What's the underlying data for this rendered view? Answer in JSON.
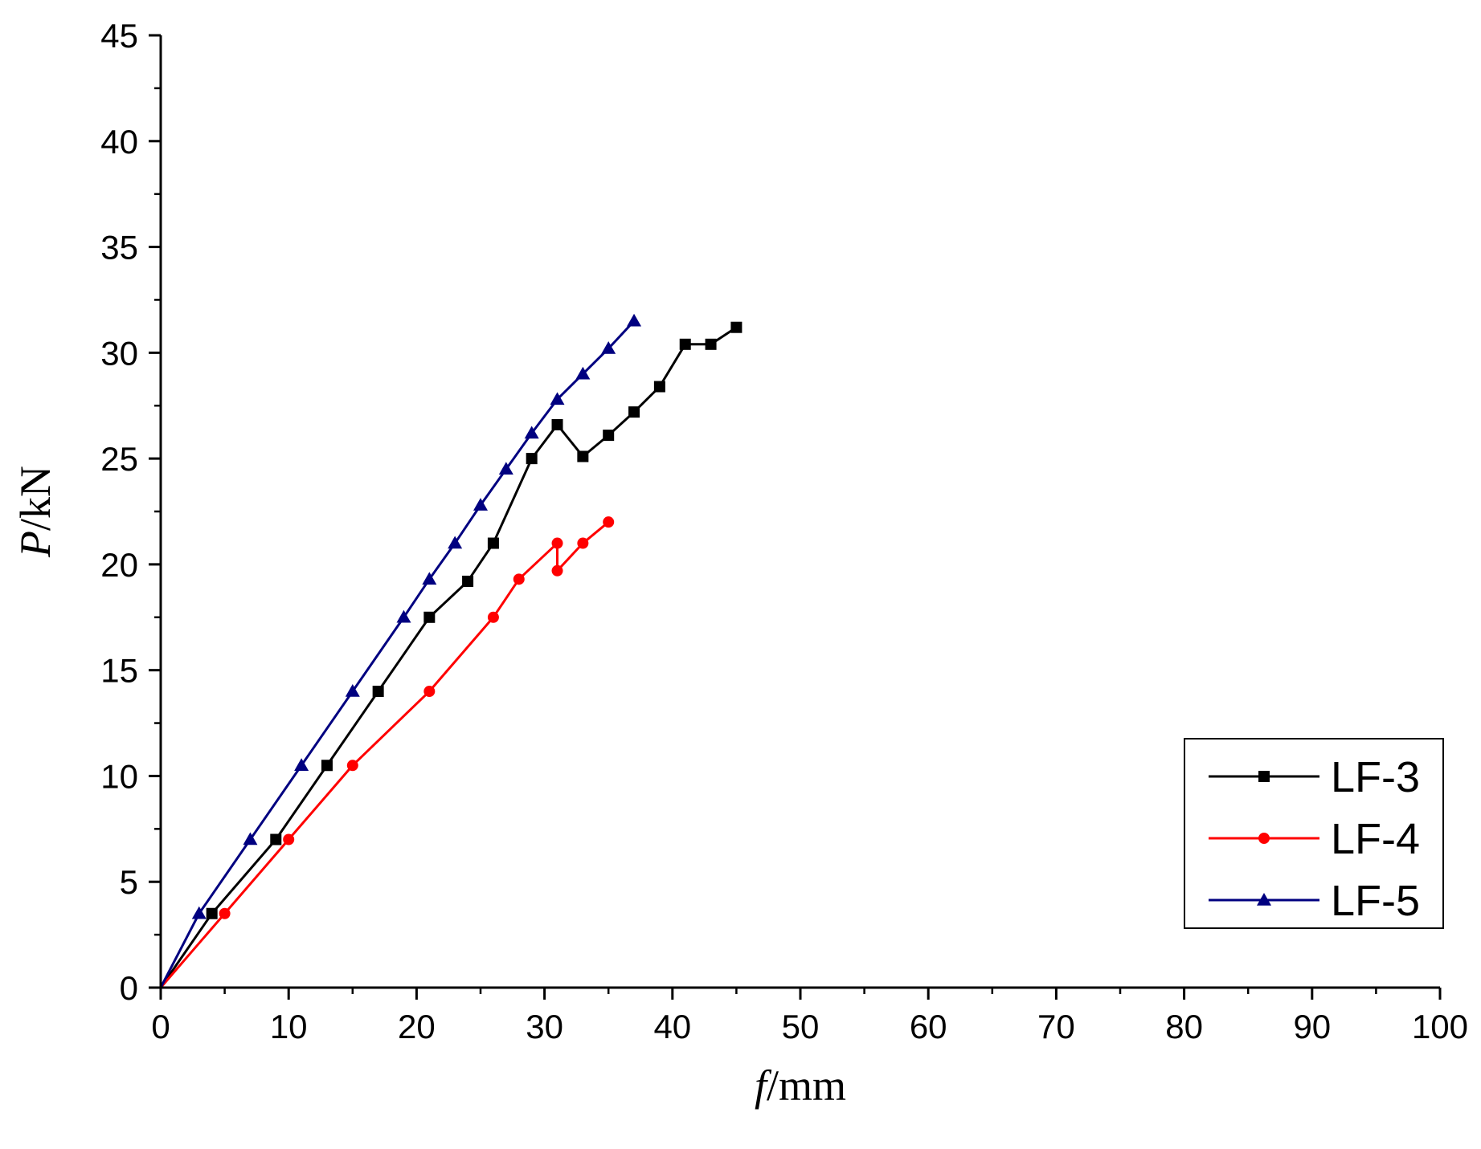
{
  "chart_data": {
    "type": "line",
    "title": "",
    "xlabel": {
      "symbol": "f",
      "unit": "/mm"
    },
    "ylabel": {
      "symbol": "P",
      "unit": "/kN"
    },
    "xlim": [
      0,
      100
    ],
    "ylim": [
      0,
      45
    ],
    "xticks": [
      0,
      10,
      20,
      30,
      40,
      50,
      60,
      70,
      80,
      90,
      100
    ],
    "yticks": [
      0,
      5,
      10,
      15,
      20,
      25,
      30,
      35,
      40,
      45
    ],
    "grid": false,
    "legend_position": "lower-right",
    "series": [
      {
        "name": "LF-3",
        "color": "#000000",
        "marker": "square",
        "points": [
          [
            0,
            0
          ],
          [
            4,
            3.5
          ],
          [
            9,
            7
          ],
          [
            13,
            10.5
          ],
          [
            17,
            14
          ],
          [
            21,
            17.5
          ],
          [
            24,
            19.2
          ],
          [
            26,
            21
          ],
          [
            29,
            25
          ],
          [
            31,
            26.6
          ],
          [
            33,
            25.1
          ],
          [
            35,
            26.1
          ],
          [
            37,
            27.2
          ],
          [
            39,
            28.4
          ],
          [
            41,
            30.4
          ],
          [
            43,
            30.4
          ],
          [
            45,
            31.2
          ]
        ]
      },
      {
        "name": "LF-4",
        "color": "#ff0000",
        "marker": "circle",
        "points": [
          [
            0,
            0
          ],
          [
            5,
            3.5
          ],
          [
            10,
            7
          ],
          [
            15,
            10.5
          ],
          [
            21,
            14
          ],
          [
            26,
            17.5
          ],
          [
            28,
            19.3
          ],
          [
            31,
            21
          ],
          [
            31,
            19.7
          ],
          [
            33,
            21
          ],
          [
            35,
            22
          ]
        ]
      },
      {
        "name": "LF-5",
        "color": "#000080",
        "marker": "triangle",
        "points": [
          [
            0,
            0
          ],
          [
            3,
            3.5
          ],
          [
            7,
            7
          ],
          [
            11,
            10.5
          ],
          [
            15,
            14
          ],
          [
            19,
            17.5
          ],
          [
            21,
            19.3
          ],
          [
            23,
            21
          ],
          [
            25,
            22.8
          ],
          [
            27,
            24.5
          ],
          [
            29,
            26.2
          ],
          [
            31,
            27.8
          ],
          [
            33,
            29
          ],
          [
            35,
            30.2
          ],
          [
            37,
            31.5
          ]
        ]
      }
    ]
  }
}
